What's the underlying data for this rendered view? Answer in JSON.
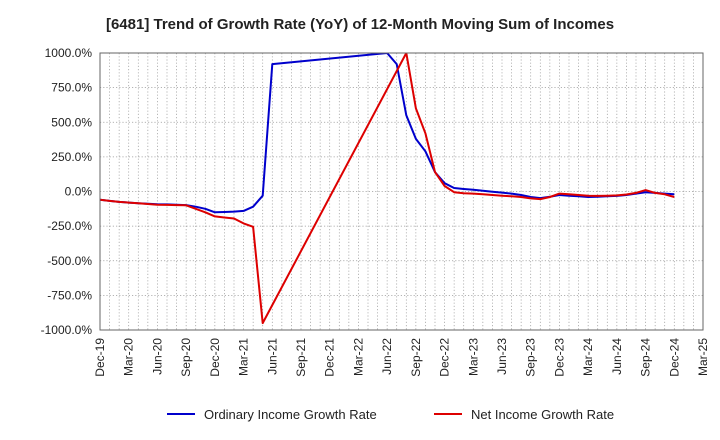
{
  "chart_data": {
    "type": "line",
    "title": "[6481]  Trend of Growth Rate (YoY) of 12-Month Moving Sum of Incomes",
    "xlabel": "",
    "ylabel": "",
    "ylim": [
      -1000,
      1000
    ],
    "y_ticks": [
      1000,
      750,
      500,
      250,
      0,
      -250,
      -500,
      -750,
      -1000
    ],
    "y_tick_labels": [
      "1000.0%",
      "750.0%",
      "500.0%",
      "250.0%",
      "0.0%",
      "-250.0%",
      "-500.0%",
      "-750.0%",
      "-1000.0%"
    ],
    "x_tick_labels": [
      "Dec-19",
      "Mar-20",
      "Jun-20",
      "Sep-20",
      "Dec-20",
      "Mar-21",
      "Jun-21",
      "Sep-21",
      "Dec-21",
      "Mar-22",
      "Jun-22",
      "Sep-22",
      "Dec-22",
      "Mar-23",
      "Jun-23",
      "Sep-23",
      "Dec-23",
      "Mar-24",
      "Jun-24",
      "Sep-24",
      "Dec-24",
      "Mar-25"
    ],
    "grid": true,
    "legend_position": "bottom",
    "series": [
      {
        "name": "Ordinary Income Growth Rate",
        "color": "#0000cc",
        "points": [
          [
            "Dec-19",
            -60
          ],
          [
            "Jan-20",
            -68
          ],
          [
            "Feb-20",
            -75
          ],
          [
            "Mar-20",
            -80
          ],
          [
            "Apr-20",
            -85
          ],
          [
            "May-20",
            -88
          ],
          [
            "Jun-20",
            -92
          ],
          [
            "Jul-20",
            -93
          ],
          [
            "Aug-20",
            -95
          ],
          [
            "Sep-20",
            -98
          ],
          [
            "Oct-20",
            -110
          ],
          [
            "Nov-20",
            -125
          ],
          [
            "Dec-20",
            -150
          ],
          [
            "Jan-21",
            -148
          ],
          [
            "Feb-21",
            -145
          ],
          [
            "Mar-21",
            -140
          ],
          [
            "Apr-21",
            -110
          ],
          [
            "May-21",
            -30
          ],
          [
            "Jun-21",
            920
          ],
          [
            "Jun-22",
            1000
          ],
          [
            "Jul-22",
            920
          ],
          [
            "Aug-22",
            550
          ],
          [
            "Sep-22",
            380
          ],
          [
            "Oct-22",
            290
          ],
          [
            "Nov-22",
            140
          ],
          [
            "Dec-22",
            60
          ],
          [
            "Jan-23",
            25
          ],
          [
            "Feb-23",
            18
          ],
          [
            "Mar-23",
            12
          ],
          [
            "Apr-23",
            5
          ],
          [
            "May-23",
            -2
          ],
          [
            "Jun-23",
            -8
          ],
          [
            "Jul-23",
            -15
          ],
          [
            "Aug-23",
            -25
          ],
          [
            "Sep-23",
            -40
          ],
          [
            "Oct-23",
            -48
          ],
          [
            "Nov-23",
            -38
          ],
          [
            "Dec-23",
            -25
          ],
          [
            "Jan-24",
            -30
          ],
          [
            "Feb-24",
            -35
          ],
          [
            "Mar-24",
            -40
          ],
          [
            "Apr-24",
            -38
          ],
          [
            "May-24",
            -35
          ],
          [
            "Jun-24",
            -32
          ],
          [
            "Jul-24",
            -25
          ],
          [
            "Aug-24",
            -15
          ],
          [
            "Sep-24",
            -5
          ],
          [
            "Oct-24",
            -10
          ],
          [
            "Nov-24",
            -15
          ],
          [
            "Dec-24",
            -20
          ]
        ]
      },
      {
        "name": "Net Income Growth Rate",
        "color": "#dd0000",
        "points": [
          [
            "Dec-19",
            -60
          ],
          [
            "Jan-20",
            -68
          ],
          [
            "Feb-20",
            -75
          ],
          [
            "Mar-20",
            -80
          ],
          [
            "Apr-20",
            -85
          ],
          [
            "May-20",
            -90
          ],
          [
            "Jun-20",
            -95
          ],
          [
            "Jul-20",
            -97
          ],
          [
            "Aug-20",
            -98
          ],
          [
            "Sep-20",
            -100
          ],
          [
            "Oct-20",
            -125
          ],
          [
            "Nov-20",
            -150
          ],
          [
            "Dec-20",
            -180
          ],
          [
            "Jan-21",
            -188
          ],
          [
            "Feb-21",
            -195
          ],
          [
            "Mar-21",
            -230
          ],
          [
            "Apr-21",
            -255
          ],
          [
            "May-21",
            -950
          ],
          [
            "Aug-22",
            1000
          ],
          [
            "Sep-22",
            600
          ],
          [
            "Oct-22",
            420
          ],
          [
            "Nov-22",
            140
          ],
          [
            "Dec-22",
            40
          ],
          [
            "Jan-23",
            -5
          ],
          [
            "Feb-23",
            -12
          ],
          [
            "Mar-23",
            -15
          ],
          [
            "Apr-23",
            -20
          ],
          [
            "May-23",
            -25
          ],
          [
            "Jun-23",
            -30
          ],
          [
            "Jul-23",
            -35
          ],
          [
            "Aug-23",
            -40
          ],
          [
            "Sep-23",
            -50
          ],
          [
            "Oct-23",
            -55
          ],
          [
            "Nov-23",
            -40
          ],
          [
            "Dec-23",
            -15
          ],
          [
            "Jan-24",
            -20
          ],
          [
            "Feb-24",
            -25
          ],
          [
            "Mar-24",
            -30
          ],
          [
            "Apr-24",
            -32
          ],
          [
            "May-24",
            -30
          ],
          [
            "Jun-24",
            -28
          ],
          [
            "Jul-24",
            -22
          ],
          [
            "Aug-24",
            -10
          ],
          [
            "Sep-24",
            10
          ],
          [
            "Oct-24",
            -10
          ],
          [
            "Nov-24",
            -20
          ],
          [
            "Dec-24",
            -40
          ]
        ]
      }
    ]
  }
}
